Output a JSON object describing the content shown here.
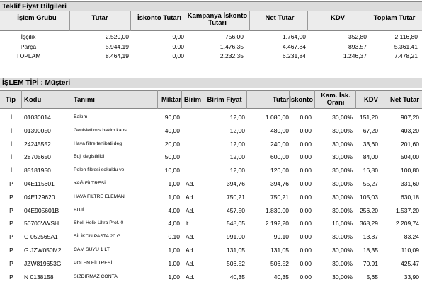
{
  "section1": {
    "title": "Teklif Fiyat Bilgileri",
    "headers": [
      "İşlem Grubu",
      "Tutar",
      "İskonto Tutarı",
      "Kampanya İskonto Tutarı",
      "Net Tutar",
      "KDV",
      "Toplam Tutar"
    ],
    "rows": [
      [
        "İşçilik",
        "2.520,00",
        "0,00",
        "756,00",
        "1.764,00",
        "352,80",
        "2.116,80"
      ],
      [
        "Parça",
        "5.944,19",
        "0,00",
        "1.476,35",
        "4.467,84",
        "893,57",
        "5.361,41"
      ],
      [
        "TOPLAM",
        "8.464,19",
        "0,00",
        "2.232,35",
        "6.231,84",
        "1.246,37",
        "7.478,21"
      ]
    ]
  },
  "section2": {
    "title": "İŞLEM TİPİ : Müşteri",
    "headers": [
      "Tip",
      "Kodu",
      "Tanımı",
      "Miktar",
      "Birim",
      "Birim Fiyat",
      "Tutar",
      "İskonto",
      "Kam. İsk. Oranı",
      "KDV",
      "Net Tutar"
    ],
    "rows": [
      [
        "İ",
        "01030014",
        "Bakım",
        "90,00",
        "",
        "12,00",
        "1.080,00",
        "0,00",
        "30,00%",
        "151,20",
        "907,20"
      ],
      [
        "İ",
        "01390050",
        "Genisletilmis bakim kaps.",
        "40,00",
        "",
        "12,00",
        "480,00",
        "0,00",
        "30,00%",
        "67,20",
        "403,20"
      ],
      [
        "İ",
        "24245552",
        "Hava filtre tertibati deg",
        "20,00",
        "",
        "12,00",
        "240,00",
        "0,00",
        "30,00%",
        "33,60",
        "201,60"
      ],
      [
        "İ",
        "28705650",
        "Buji degistirildi",
        "50,00",
        "",
        "12,00",
        "600,00",
        "0,00",
        "30,00%",
        "84,00",
        "504,00"
      ],
      [
        "İ",
        "85181950",
        "Polen filtresi sokuldu ve",
        "10,00",
        "",
        "12,00",
        "120,00",
        "0,00",
        "30,00%",
        "16,80",
        "100,80"
      ],
      [
        "P",
        "04E115601",
        "YAĞ FİLTRESİ",
        "1,00",
        "Ad.",
        "394,76",
        "394,76",
        "0,00",
        "30,00%",
        "55,27",
        "331,60"
      ],
      [
        "P",
        "04E129620",
        "HAVA FİLTRE ELEMANI",
        "1,00",
        "Ad.",
        "750,21",
        "750,21",
        "0,00",
        "30,00%",
        "105,03",
        "630,18"
      ],
      [
        "P",
        "04E905601B",
        "BUJİ",
        "4,00",
        "Ad.",
        "457,50",
        "1.830,00",
        "0,00",
        "30,00%",
        "256,20",
        "1.537,20"
      ],
      [
        "P",
        "50700VWSH",
        "Shell Helix Ultra Prof. 0",
        "4,00",
        "lt",
        "548,05",
        "2.192,20",
        "0,00",
        "16,00%",
        "368,29",
        "2.209,74"
      ],
      [
        "P",
        "G  052565A1",
        "SİLİKON PASTA 20 G",
        "0,10",
        "Ad.",
        "991,00",
        "99,10",
        "0,00",
        "30,00%",
        "13,87",
        "83,24"
      ],
      [
        "P",
        "G  JZW050M2",
        "CAM SUYU 1 LT",
        "1,00",
        "Ad.",
        "131,05",
        "131,05",
        "0,00",
        "30,00%",
        "18,35",
        "110,09"
      ],
      [
        "P",
        "JZW819653G",
        "POLEN FİLTRESİ",
        "1,00",
        "Ad.",
        "506,52",
        "506,52",
        "0,00",
        "30,00%",
        "70,91",
        "425,47"
      ],
      [
        "P",
        "N  0138158",
        "SIZDIRMAZ CONTA",
        "1,00",
        "Ad.",
        "40,35",
        "40,35",
        "0,00",
        "30,00%",
        "5,65",
        "33,90"
      ]
    ]
  }
}
